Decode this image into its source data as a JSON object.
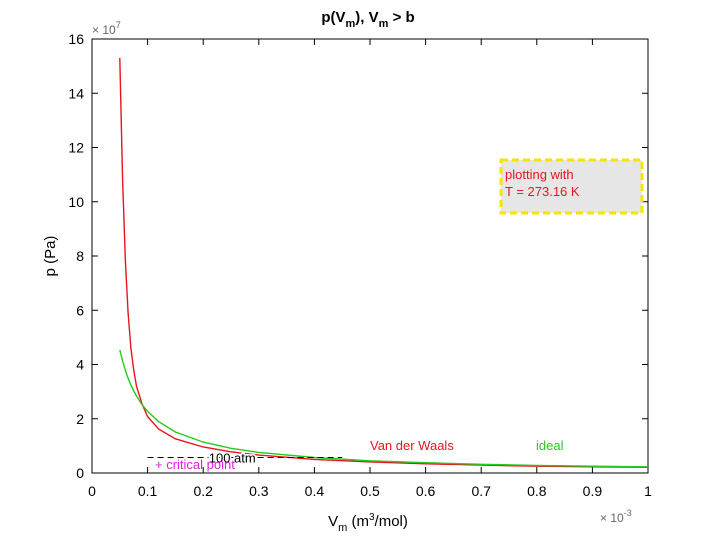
{
  "chart_data": {
    "type": "line",
    "title": {
      "base": "p(V",
      "sub1": "m",
      "mid": "), V",
      "sub2": "m",
      "tail": " > b"
    },
    "xlabel": {
      "base": "V",
      "sub": "m",
      "mid": " (m",
      "sup": "3",
      "tail": "/mol)"
    },
    "ylabel": "p (Pa)",
    "x_multiplier": {
      "base": "× 10",
      "exp": "-3"
    },
    "y_multiplier": {
      "base": "× 10",
      "exp": "7"
    },
    "xlim": [
      0,
      1
    ],
    "ylim": [
      0,
      16
    ],
    "x_ticks": [
      0,
      0.1,
      0.2,
      0.3,
      0.4,
      0.5,
      0.6,
      0.7,
      0.8,
      0.9,
      1
    ],
    "x_tick_labels": [
      "0",
      "0.1",
      "0.2",
      "0.3",
      "0.4",
      "0.5",
      "0.6",
      "0.7",
      "0.8",
      "0.9",
      "1"
    ],
    "y_ticks": [
      0,
      2,
      4,
      6,
      8,
      10,
      12,
      14,
      16
    ],
    "y_tick_labels": [
      "0",
      "2",
      "4",
      "6",
      "8",
      "10",
      "12",
      "14",
      "16"
    ],
    "grid": false,
    "series": [
      {
        "name": "Van der Waals",
        "color": "#e8141e",
        "x": [
          0.05,
          0.055,
          0.06,
          0.065,
          0.07,
          0.075,
          0.08,
          0.09,
          0.1,
          0.12,
          0.15,
          0.2,
          0.25,
          0.3,
          0.4,
          0.5,
          0.6,
          0.7,
          0.8,
          0.9,
          1.0
        ],
        "y": [
          15.3,
          10.8,
          7.8,
          5.9,
          4.6,
          3.8,
          3.2,
          2.55,
          2.08,
          1.62,
          1.26,
          0.96,
          0.78,
          0.66,
          0.5,
          0.41,
          0.34,
          0.29,
          0.25,
          0.23,
          0.21
        ]
      },
      {
        "name": "ideal",
        "color": "#22cc1e",
        "x": [
          0.05,
          0.055,
          0.06,
          0.065,
          0.07,
          0.075,
          0.08,
          0.09,
          0.1,
          0.12,
          0.15,
          0.2,
          0.25,
          0.3,
          0.4,
          0.5,
          0.6,
          0.7,
          0.8,
          0.9,
          1.0
        ],
        "y": [
          4.54,
          4.13,
          3.78,
          3.49,
          3.24,
          3.03,
          2.84,
          2.52,
          2.27,
          1.89,
          1.51,
          1.14,
          0.91,
          0.76,
          0.57,
          0.45,
          0.38,
          0.32,
          0.28,
          0.25,
          0.23
        ]
      }
    ],
    "reference_line": {
      "label": "100 atm",
      "y": 1.013,
      "x_range": [
        0.1,
        0.45
      ],
      "color": "#000000",
      "style": "dashed"
    },
    "annotations": {
      "critical_point": {
        "text": "+ critical point",
        "color": "#e020e0"
      },
      "vdw_label": {
        "text": "Van der Waals",
        "color": "#e8141e"
      },
      "ideal_label": {
        "text": "ideal",
        "color": "#22cc1e"
      },
      "info_box": {
        "lines": [
          "plotting with",
          "T = 273.16 K"
        ],
        "text_color": "#e8141e",
        "background": "#e6e6e6",
        "border_color": "#f5e600"
      }
    }
  }
}
